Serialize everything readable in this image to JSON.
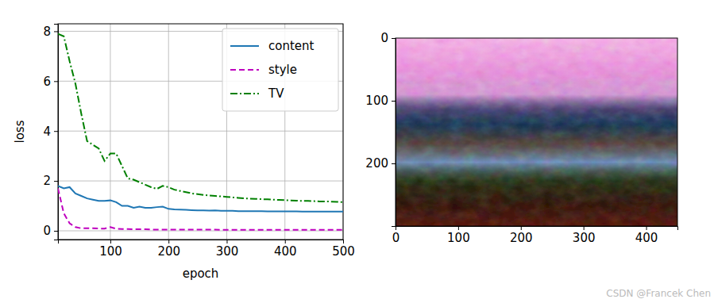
{
  "chart_data": [
    {
      "type": "line",
      "x_label": "epoch",
      "y_label": "loss",
      "x": [
        10,
        20,
        30,
        40,
        50,
        60,
        70,
        80,
        90,
        100,
        110,
        120,
        130,
        140,
        150,
        160,
        170,
        180,
        190,
        200,
        210,
        220,
        230,
        240,
        250,
        260,
        270,
        280,
        290,
        300,
        310,
        320,
        330,
        340,
        350,
        360,
        370,
        380,
        390,
        400,
        410,
        420,
        430,
        440,
        450,
        460,
        470,
        480,
        490,
        500
      ],
      "series": [
        {
          "name": "content",
          "color": "#1f77b4",
          "line_style": "solid",
          "values": [
            1.8,
            1.7,
            1.75,
            1.5,
            1.4,
            1.3,
            1.25,
            1.2,
            1.2,
            1.22,
            1.15,
            1.0,
            1.0,
            0.92,
            0.97,
            0.92,
            0.92,
            0.95,
            0.97,
            0.88,
            0.86,
            0.85,
            0.84,
            0.83,
            0.82,
            0.82,
            0.81,
            0.82,
            0.8,
            0.8,
            0.8,
            0.79,
            0.79,
            0.79,
            0.79,
            0.79,
            0.78,
            0.78,
            0.78,
            0.78,
            0.78,
            0.78,
            0.77,
            0.77,
            0.77,
            0.77,
            0.77,
            0.77,
            0.77,
            0.77
          ]
        },
        {
          "name": "style",
          "color": "#bf00bf",
          "line_style": "dashed",
          "values": [
            1.7,
            0.7,
            0.3,
            0.15,
            0.1,
            0.1,
            0.1,
            0.09,
            0.09,
            0.15,
            0.08,
            0.07,
            0.07,
            0.06,
            0.06,
            0.06,
            0.05,
            0.05,
            0.05,
            0.05,
            0.05,
            0.05,
            0.05,
            0.05,
            0.05,
            0.05,
            0.05,
            0.05,
            0.04,
            0.04,
            0.04,
            0.04,
            0.04,
            0.04,
            0.04,
            0.04,
            0.04,
            0.04,
            0.04,
            0.04,
            0.04,
            0.04,
            0.04,
            0.04,
            0.04,
            0.04,
            0.04,
            0.04,
            0.04,
            0.04
          ]
        },
        {
          "name": "TV",
          "color": "#008000",
          "line_style": "dashdot",
          "values": [
            7.9,
            7.8,
            6.8,
            5.9,
            4.7,
            3.6,
            3.45,
            3.3,
            2.8,
            3.1,
            3.1,
            2.6,
            2.1,
            2.05,
            1.95,
            1.85,
            1.75,
            1.68,
            1.8,
            1.75,
            1.65,
            1.6,
            1.55,
            1.5,
            1.47,
            1.44,
            1.42,
            1.4,
            1.38,
            1.36,
            1.34,
            1.32,
            1.3,
            1.29,
            1.28,
            1.27,
            1.26,
            1.25,
            1.24,
            1.23,
            1.22,
            1.21,
            1.2,
            1.2,
            1.19,
            1.18,
            1.18,
            1.17,
            1.16,
            1.15
          ]
        }
      ],
      "xlim": [
        10,
        500
      ],
      "ylim": [
        -0.35,
        8.3
      ],
      "xticks": [
        100,
        200,
        300,
        400,
        500
      ],
      "yticks": [
        0,
        2,
        4,
        6,
        8
      ],
      "grid": true,
      "legend": "upper right"
    },
    {
      "type": "image",
      "xlim": [
        0,
        450
      ],
      "ylim": [
        300,
        0
      ],
      "xticks": [
        0,
        100,
        200,
        300,
        400
      ],
      "yticks": [
        0,
        100,
        200
      ],
      "grid": false
    }
  ],
  "watermark": "CSDN @Francek Chen"
}
